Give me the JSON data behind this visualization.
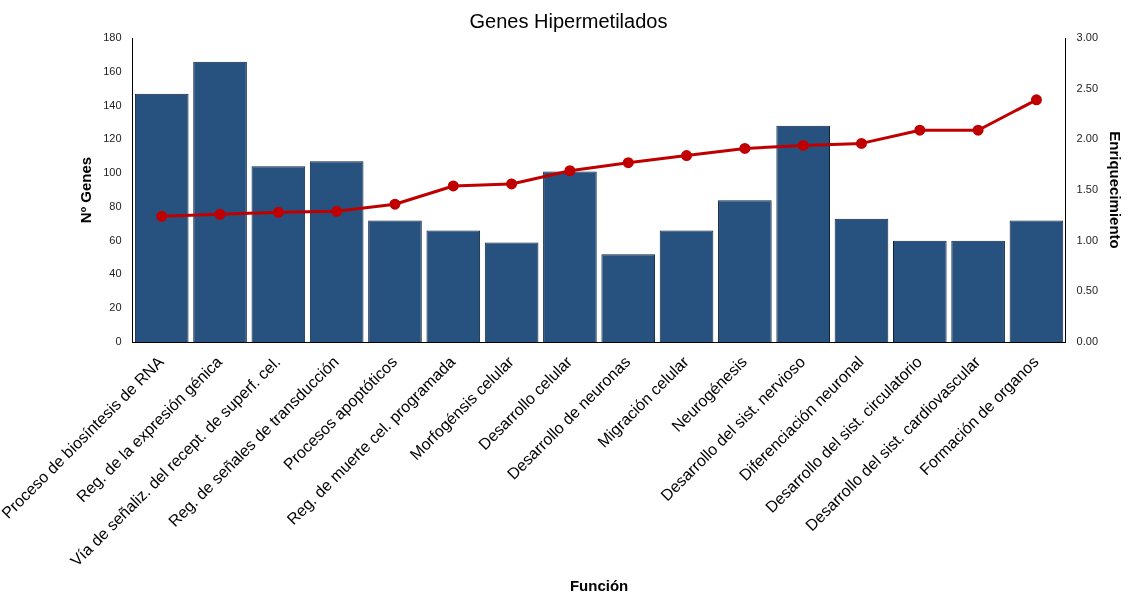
{
  "chart_data": {
    "type": "bar",
    "title": "Genes Hipermetilados",
    "xlabel": "Función",
    "ylabel": "Nº Genes",
    "y2label": "Enriquecimiento",
    "categories": [
      "Proceso de biosíntesis de RNA",
      "Reg. de la expresión génica",
      "Vía de señaliz. del recept. de superf. cel.",
      "Reg. de señales de transducción",
      "Procesos apoptóticos",
      "Reg. de muerte cel. programada",
      "Morfogénsis celular",
      "Desarrollo celular",
      "Desarrollo de neuronas",
      "Migración celular",
      "Neurogénesis",
      "Desarrollo del sist. nervioso",
      "Diferenciación neuronal",
      "Desarrollo del sist. circulatorio",
      "Desarrollo del sist. cardiovascular",
      "Formación de organos"
    ],
    "series": [
      {
        "color": "#27527f",
        "values": [
          147,
          166,
          104,
          107,
          72,
          66,
          59,
          101,
          52,
          66,
          84,
          128,
          73,
          60,
          60,
          72
        ]
      },
      {
        "type": "line",
        "axis": "y2",
        "color": "#c00000",
        "values": [
          1.24,
          1.26,
          1.28,
          1.29,
          1.36,
          1.54,
          1.56,
          1.69,
          1.77,
          1.84,
          1.91,
          1.94,
          1.96,
          2.09,
          2.09,
          2.39
        ]
      }
    ],
    "ylim": [
      0,
      180
    ],
    "yticks": [
      0,
      20,
      40,
      60,
      80,
      100,
      120,
      140,
      160,
      180
    ],
    "y2lim": [
      0,
      3
    ],
    "y2ticks": [
      {
        "value": 0,
        "label": "0.00"
      },
      {
        "value": 0.5,
        "label": "0.50"
      },
      {
        "value": 1,
        "label": "1.00"
      },
      {
        "value": 1.5,
        "label": "1.50"
      },
      {
        "value": 2,
        "label": "2.00"
      },
      {
        "value": 2.5,
        "label": "2.50"
      },
      {
        "value": 3,
        "label": "3.00"
      }
    ],
    "grid": false,
    "legend": false,
    "marker": "circle",
    "line_style": "solid"
  }
}
